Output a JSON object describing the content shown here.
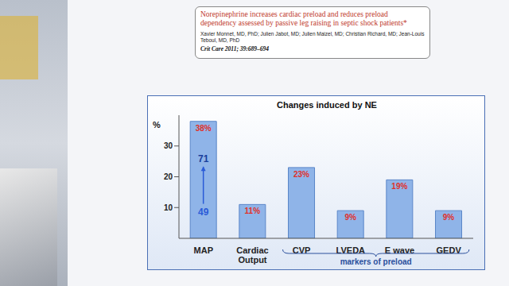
{
  "header": {
    "title": "Norepinephrine increases cardiac preload and reduces preload dependency assessed by passive leg raising in septic shock patients*",
    "authors": "Xavier Monnet, MD, PhD; Julien Jabot, MD; Julien Maizel, MD; Christian Richard, MD; Jean-Louis Teboul, MD, PhD",
    "source": "Crit Care 2011; 39:689–694"
  },
  "chart_data": {
    "type": "bar",
    "title": "Changes induced by NE",
    "y_label": "%",
    "categories": [
      "MAP",
      "Cardiac Output",
      "CVP",
      "LVEDA",
      "E wave",
      "GEDV"
    ],
    "values": [
      38,
      11,
      23,
      9,
      19,
      9
    ],
    "value_labels": [
      "38%",
      "11%",
      "23%",
      "9%",
      "19%",
      "9%"
    ],
    "data_labels": true,
    "color": "#8fb4e8",
    "ylim": [
      0,
      40
    ],
    "yticks": [
      10,
      20,
      30
    ],
    "grid": false,
    "annotation": {
      "category": "MAP",
      "from": 49,
      "to": 71
    },
    "group": {
      "label": "markers of preload",
      "categories": [
        "CVP",
        "LVEDA",
        "E wave",
        "GEDV"
      ]
    }
  }
}
